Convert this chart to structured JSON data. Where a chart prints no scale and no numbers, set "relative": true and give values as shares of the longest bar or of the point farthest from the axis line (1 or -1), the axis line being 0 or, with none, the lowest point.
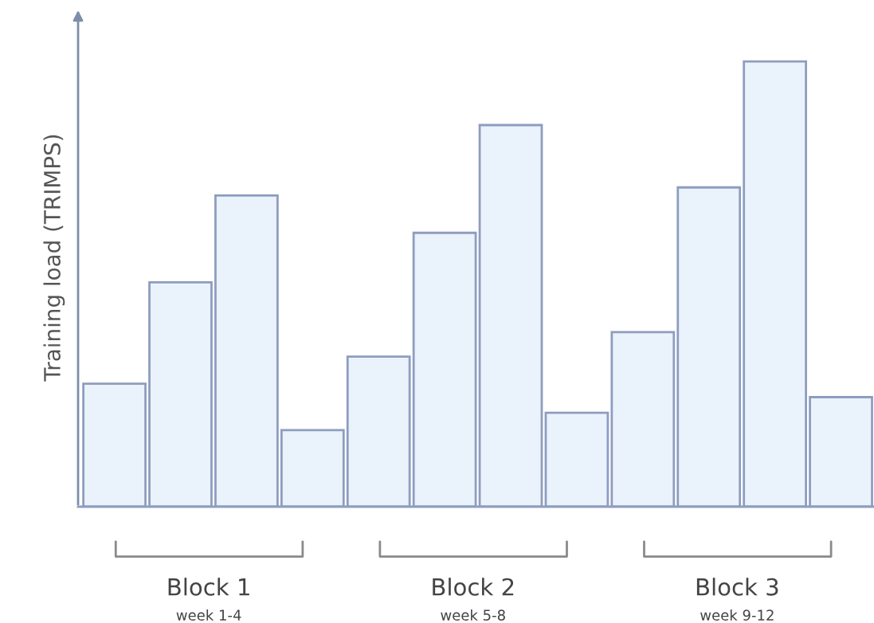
{
  "chart_data": {
    "type": "bar",
    "relative": true,
    "ylabel": "Training load (TRIMPS)",
    "categories": [
      null,
      null,
      null,
      null,
      null,
      null,
      null,
      null,
      null,
      null,
      null,
      null
    ],
    "values": [
      0.276,
      0.504,
      0.699,
      0.172,
      0.337,
      0.615,
      0.857,
      0.211,
      0.392,
      0.717,
      1,
      0.246
    ],
    "color": "#eaf2fb",
    "annotations": [
      "Block 1",
      "week 1-4",
      "Block 2",
      "week 5-8",
      "Block 3",
      "week 9-12"
    ]
  }
}
